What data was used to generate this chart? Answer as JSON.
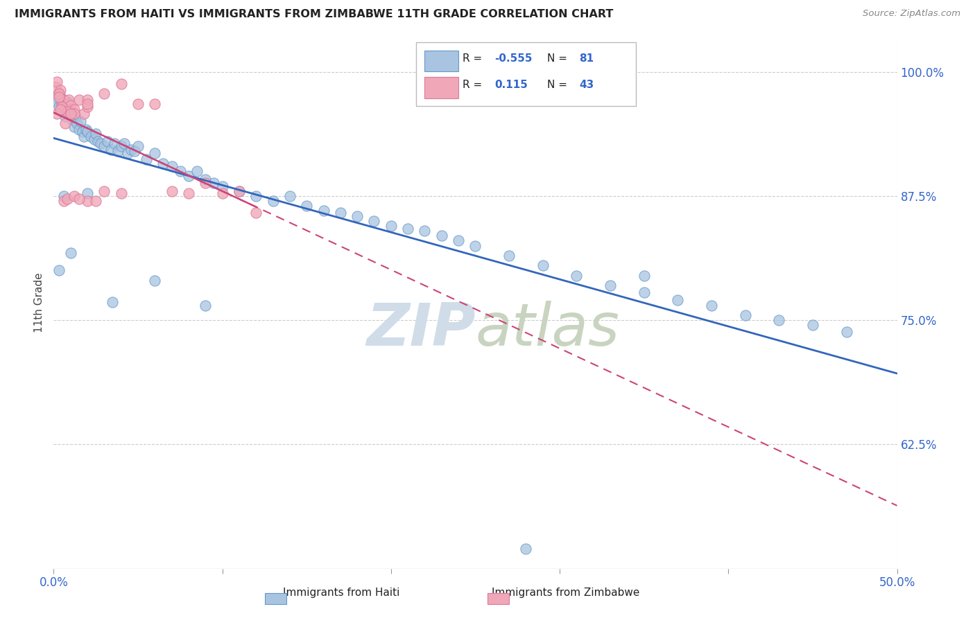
{
  "title": "IMMIGRANTS FROM HAITI VS IMMIGRANTS FROM ZIMBABWE 11TH GRADE CORRELATION CHART",
  "source": "Source: ZipAtlas.com",
  "ylabel": "11th Grade",
  "xlim": [
    0.0,
    0.5
  ],
  "ylim": [
    0.5,
    1.035
  ],
  "haiti_R": -0.555,
  "haiti_N": 81,
  "zimbabwe_R": 0.115,
  "zimbabwe_N": 43,
  "haiti_color": "#a8c4e0",
  "zimbabwe_color": "#f0a8b8",
  "haiti_edge_color": "#6699cc",
  "zimbabwe_edge_color": "#dd7799",
  "haiti_line_color": "#3366bb",
  "zimbabwe_line_color": "#cc4477",
  "watermark_color": "#d0dde8",
  "haiti_scatter_x": [
    0.001,
    0.002,
    0.003,
    0.004,
    0.005,
    0.006,
    0.007,
    0.008,
    0.009,
    0.01,
    0.011,
    0.012,
    0.013,
    0.014,
    0.015,
    0.016,
    0.017,
    0.018,
    0.019,
    0.02,
    0.022,
    0.024,
    0.025,
    0.026,
    0.028,
    0.03,
    0.032,
    0.034,
    0.036,
    0.038,
    0.04,
    0.042,
    0.044,
    0.046,
    0.048,
    0.05,
    0.055,
    0.06,
    0.065,
    0.07,
    0.075,
    0.08,
    0.085,
    0.09,
    0.095,
    0.1,
    0.11,
    0.12,
    0.13,
    0.14,
    0.15,
    0.16,
    0.17,
    0.18,
    0.19,
    0.2,
    0.21,
    0.22,
    0.23,
    0.24,
    0.25,
    0.27,
    0.29,
    0.31,
    0.33,
    0.35,
    0.37,
    0.39,
    0.41,
    0.43,
    0.45,
    0.47,
    0.003,
    0.006,
    0.01,
    0.02,
    0.035,
    0.06,
    0.09,
    0.35,
    0.28
  ],
  "haiti_scatter_y": [
    0.975,
    0.97,
    0.965,
    0.975,
    0.96,
    0.968,
    0.955,
    0.97,
    0.962,
    0.958,
    0.952,
    0.945,
    0.955,
    0.948,
    0.942,
    0.95,
    0.94,
    0.935,
    0.942,
    0.94,
    0.935,
    0.932,
    0.938,
    0.93,
    0.928,
    0.925,
    0.93,
    0.922,
    0.928,
    0.92,
    0.925,
    0.928,
    0.918,
    0.922,
    0.92,
    0.925,
    0.912,
    0.918,
    0.908,
    0.905,
    0.9,
    0.895,
    0.9,
    0.892,
    0.888,
    0.885,
    0.88,
    0.875,
    0.87,
    0.875,
    0.865,
    0.86,
    0.858,
    0.855,
    0.85,
    0.845,
    0.842,
    0.84,
    0.835,
    0.83,
    0.825,
    0.815,
    0.805,
    0.795,
    0.785,
    0.778,
    0.77,
    0.765,
    0.755,
    0.75,
    0.745,
    0.738,
    0.8,
    0.875,
    0.818,
    0.878,
    0.768,
    0.79,
    0.765,
    0.795,
    0.52
  ],
  "zimbabwe_scatter_x": [
    0.001,
    0.002,
    0.003,
    0.004,
    0.005,
    0.006,
    0.007,
    0.008,
    0.009,
    0.01,
    0.012,
    0.015,
    0.018,
    0.02,
    0.003,
    0.005,
    0.008,
    0.012,
    0.02,
    0.003,
    0.006,
    0.008,
    0.012,
    0.02,
    0.002,
    0.004,
    0.007,
    0.01,
    0.015,
    0.025,
    0.03,
    0.04,
    0.06,
    0.08,
    0.1,
    0.12,
    0.02,
    0.03,
    0.04,
    0.05,
    0.07,
    0.09,
    0.11
  ],
  "zimbabwe_scatter_y": [
    0.985,
    0.99,
    0.978,
    0.982,
    0.968,
    0.972,
    0.962,
    0.968,
    0.972,
    0.966,
    0.962,
    0.972,
    0.958,
    0.972,
    0.978,
    0.965,
    0.96,
    0.958,
    0.965,
    0.975,
    0.87,
    0.872,
    0.875,
    0.87,
    0.958,
    0.962,
    0.948,
    0.958,
    0.872,
    0.87,
    0.978,
    0.988,
    0.968,
    0.878,
    0.878,
    0.858,
    0.968,
    0.88,
    0.878,
    0.968,
    0.88,
    0.888,
    0.88
  ]
}
